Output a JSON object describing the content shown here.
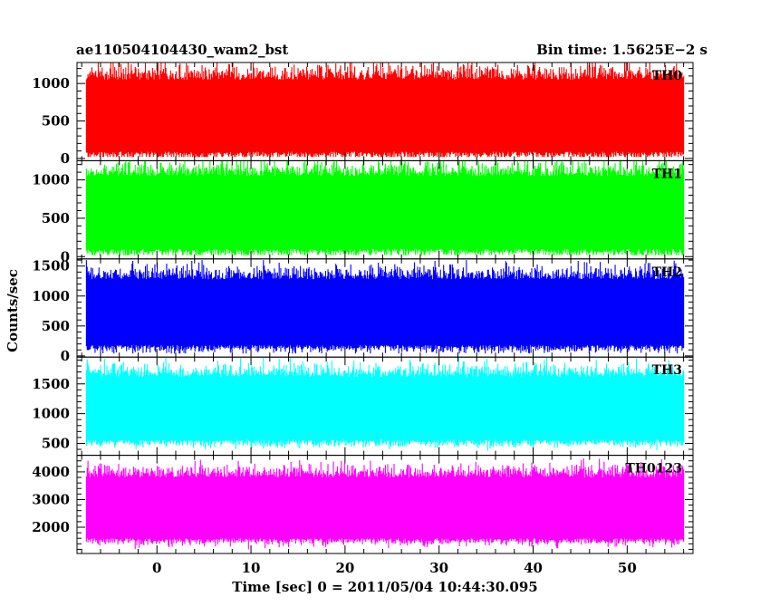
{
  "chart_data": {
    "type": "line",
    "title_left": "ae110504104430_wam2_bst",
    "title_right": "Bin time: 1.5625E−2 s",
    "xlabel": "Time [sec] 0 = 2011/05/04 10:44:30.095",
    "ylabel": "Counts/sec",
    "xlim": [
      -8.5,
      57
    ],
    "x_ticks": [
      0,
      10,
      20,
      30,
      40,
      50
    ],
    "x_tick_labels": [
      "0",
      "10",
      "20",
      "30",
      "40",
      "50"
    ],
    "x_minor_step": 2,
    "data_x_range": [
      -7.5,
      56
    ],
    "grid": false,
    "panels": [
      {
        "name": "TH0",
        "color": "#ff0000",
        "ylim": [
          -30,
          1280
        ],
        "y_ticks": [
          0,
          500,
          1000
        ],
        "y_tick_labels": [
          "0",
          "500",
          "1000"
        ],
        "y_minor_step": 100,
        "mean": 560,
        "typical_low": 90,
        "typical_high": 1050,
        "min": 20,
        "max": 1280
      },
      {
        "name": "TH1",
        "color": "#00ff00",
        "ylim": [
          -30,
          1250
        ],
        "y_ticks": [
          0,
          500,
          1000
        ],
        "y_tick_labels": [
          "0",
          "500",
          "1000"
        ],
        "y_minor_step": 100,
        "mean": 570,
        "typical_low": 100,
        "typical_high": 1050,
        "min": 20,
        "max": 1250
      },
      {
        "name": "TH2",
        "color": "#0000ff",
        "ylim": [
          -20,
          1620
        ],
        "y_ticks": [
          0,
          500,
          1000,
          1500
        ],
        "y_tick_labels": [
          "0",
          "500",
          "1000",
          "1500"
        ],
        "y_minor_step": 100,
        "mean": 680,
        "typical_low": 180,
        "typical_high": 1280,
        "min": 40,
        "max": 1600
      },
      {
        "name": "TH3",
        "color": "#00ffff",
        "ylim": [
          300,
          1950
        ],
        "y_ticks": [
          500,
          1000,
          1500
        ],
        "y_tick_labels": [
          "500",
          "1000",
          "1500"
        ],
        "y_minor_step": 100,
        "mean": 1050,
        "typical_low": 560,
        "typical_high": 1620,
        "min": 360,
        "max": 1950
      },
      {
        "name": "TH0123",
        "color": "#ff00ff",
        "ylim": [
          1050,
          4600
        ],
        "y_ticks": [
          2000,
          3000,
          4000
        ],
        "y_tick_labels": [
          "2000",
          "3000",
          "4000"
        ],
        "y_minor_step": 200,
        "mean": 2650,
        "typical_low": 1600,
        "typical_high": 3800,
        "min": 1100,
        "max": 4600
      }
    ]
  }
}
